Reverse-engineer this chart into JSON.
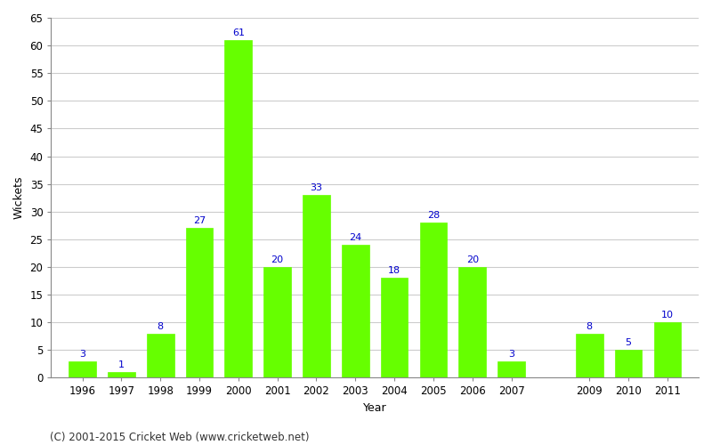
{
  "years": [
    1996,
    1997,
    1998,
    1999,
    2000,
    2001,
    2002,
    2003,
    2004,
    2005,
    2006,
    2007,
    2009,
    2010,
    2011
  ],
  "wickets": [
    3,
    1,
    8,
    27,
    61,
    20,
    33,
    24,
    18,
    28,
    20,
    3,
    8,
    5,
    10
  ],
  "bar_color": "#66ff00",
  "bar_edge_color": "#66ff00",
  "label_color": "#0000cc",
  "xlabel": "Year",
  "ylabel": "Wickets",
  "ylim": [
    0,
    65
  ],
  "yticks": [
    0,
    5,
    10,
    15,
    20,
    25,
    30,
    35,
    40,
    45,
    50,
    55,
    60,
    65
  ],
  "background_color": "#ffffff",
  "grid_color": "#cccccc",
  "footer": "(C) 2001-2015 Cricket Web (www.cricketweb.net)",
  "label_fontsize": 8,
  "axis_label_fontsize": 9,
  "tick_fontsize": 8.5,
  "footer_fontsize": 8.5,
  "bar_width": 0.7
}
